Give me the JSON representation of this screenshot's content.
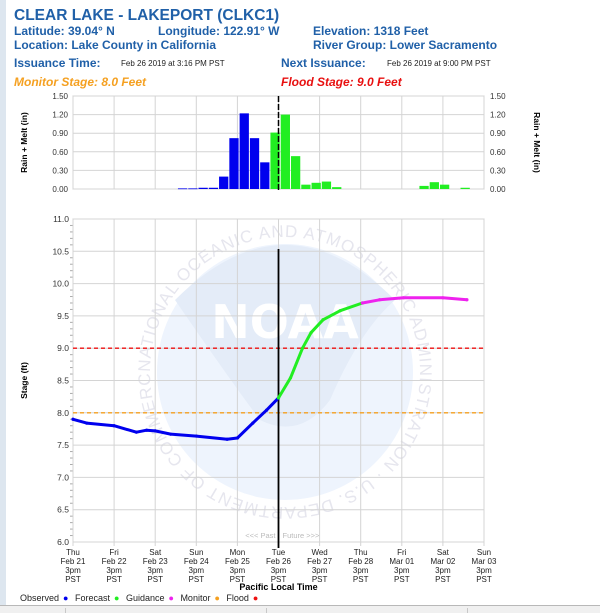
{
  "header": {
    "title": "CLEAR LAKE - LAKEPORT (CLKC1)",
    "latitude": "Latitude: 39.04° N",
    "longitude": "Longitude: 122.91° W",
    "elevation": "Elevation: 1318 Feet",
    "location": "Location: Lake County in California",
    "river_group": "River Group: Lower Sacramento",
    "issuance_label": "Issuance Time:",
    "issuance_value": "Feb 26 2019 at 3:16 PM PST",
    "next_label": "Next Issuance:",
    "next_value": "Feb 26 2019 at 9:00 PM PST",
    "monitor_stage": "Monitor Stage: 8.0 Feet",
    "flood_stage": "Flood Stage: 9.0 Feet"
  },
  "colors": {
    "header_text": "#2060a8",
    "observed": "#0000ee",
    "forecast": "#22ee22",
    "guidance": "#ee22ee",
    "monitor": "#f5a020",
    "flood": "#ee1111"
  },
  "watermark": {
    "text": "NOAA",
    "ring": "NATIONAL OCEANIC AND ATMOSPHERIC ADMINISTRATION · U.S. DEPARTMENT OF COMMERCE"
  },
  "legend": {
    "items": [
      "Observed",
      "Forecast",
      "Guidance",
      "Monitor",
      "Flood"
    ]
  },
  "chart_data": [
    {
      "type": "bar",
      "ylabel": "Rain + Melt (in)",
      "ylim": [
        0,
        1.5
      ],
      "yticks": [
        "0.00",
        "0.30",
        "0.60",
        "0.90",
        "1.20",
        "1.50"
      ],
      "grid": true,
      "bar_period_hours": 6,
      "series": [
        {
          "kind": "observed",
          "color": "#0000ee",
          "points": [
            [
              "2019-02-24T10:00",
              0.01
            ],
            [
              "2019-02-24T16:00",
              0.01
            ],
            [
              "2019-02-24T22:00",
              0.02
            ],
            [
              "2019-02-25T04:00",
              0.02
            ],
            [
              "2019-02-25T10:00",
              0.2
            ],
            [
              "2019-02-25T16:00",
              0.82
            ],
            [
              "2019-02-25T22:00",
              1.22
            ],
            [
              "2019-02-26T04:00",
              0.82
            ],
            [
              "2019-02-26T10:00",
              0.43
            ]
          ]
        },
        {
          "kind": "forecast",
          "color": "#22ee22",
          "points": [
            [
              "2019-02-26T16:00",
              0.91
            ],
            [
              "2019-02-26T22:00",
              1.2
            ],
            [
              "2019-02-27T04:00",
              0.53
            ],
            [
              "2019-02-27T10:00",
              0.07
            ],
            [
              "2019-02-27T16:00",
              0.1
            ],
            [
              "2019-02-27T22:00",
              0.12
            ],
            [
              "2019-02-28T04:00",
              0.03
            ],
            [
              "2019-03-02T07:00",
              0.05
            ],
            [
              "2019-03-02T13:00",
              0.11
            ],
            [
              "2019-03-02T19:00",
              0.07
            ],
            [
              "2019-03-03T07:00",
              0.02
            ]
          ]
        }
      ]
    },
    {
      "type": "line",
      "ylabel": "Stage (ft)",
      "xlabel": "Pacific Local Time",
      "ylim": [
        6.0,
        11.0
      ],
      "yticks": [
        "6.0",
        "6.5",
        "7.0",
        "7.5",
        "8.0",
        "8.5",
        "9.0",
        "9.5",
        "10.0",
        "10.5",
        "11.0"
      ],
      "xlim": [
        "2019-02-21T15:00",
        "2019-03-03T15:00"
      ],
      "xticks": [
        [
          "Thu",
          "Feb 21",
          "3pm",
          "PST"
        ],
        [
          "Fri",
          "Feb 22",
          "3pm",
          "PST"
        ],
        [
          "Sat",
          "Feb 23",
          "3pm",
          "PST"
        ],
        [
          "Sun",
          "Feb 24",
          "3pm",
          "PST"
        ],
        [
          "Mon",
          "Feb 25",
          "3pm",
          "PST"
        ],
        [
          "Tue",
          "Feb 26",
          "3pm",
          "PST"
        ],
        [
          "Wed",
          "Feb 27",
          "3pm",
          "PST"
        ],
        [
          "Thu",
          "Feb 28",
          "3pm",
          "PST"
        ],
        [
          "Fri",
          "Mar 01",
          "3pm",
          "PST"
        ],
        [
          "Sat",
          "Mar 02",
          "3pm",
          "PST"
        ],
        [
          "Sun",
          "Mar 03",
          "3pm",
          "PST"
        ]
      ],
      "grid": true,
      "now": "2019-02-26T15:00",
      "past_label": "<<< Past",
      "future_label": "Future >>>",
      "thresholds": [
        {
          "kind": "flood",
          "value": 9.0,
          "color": "#ee1111"
        },
        {
          "kind": "monitor",
          "value": 8.0,
          "color": "#f5a020"
        }
      ],
      "series": [
        {
          "kind": "observed",
          "color": "#0000ee",
          "points": [
            [
              "2019-02-21T15:00",
              7.9
            ],
            [
              "2019-02-21T23:00",
              7.84
            ],
            [
              "2019-02-22T15:00",
              7.8
            ],
            [
              "2019-02-23T04:00",
              7.7
            ],
            [
              "2019-02-23T10:00",
              7.73
            ],
            [
              "2019-02-23T15:00",
              7.72
            ],
            [
              "2019-02-24T00:00",
              7.67
            ],
            [
              "2019-02-24T15:00",
              7.64
            ],
            [
              "2019-02-25T09:00",
              7.59
            ],
            [
              "2019-02-25T15:00",
              7.61
            ],
            [
              "2019-02-26T00:00",
              7.84
            ],
            [
              "2019-02-26T08:00",
              8.04
            ],
            [
              "2019-02-26T15:00",
              8.23
            ]
          ]
        },
        {
          "kind": "forecast",
          "color": "#22ee22",
          "points": [
            [
              "2019-02-26T15:00",
              8.23
            ],
            [
              "2019-02-26T22:00",
              8.54
            ],
            [
              "2019-02-27T05:00",
              9.0
            ],
            [
              "2019-02-27T10:00",
              9.24
            ],
            [
              "2019-02-27T17:00",
              9.44
            ],
            [
              "2019-02-28T03:00",
              9.58
            ],
            [
              "2019-02-28T16:00",
              9.7
            ]
          ]
        },
        {
          "kind": "guidance",
          "color": "#ee22ee",
          "points": [
            [
              "2019-02-28T16:00",
              9.7
            ],
            [
              "2019-03-01T02:00",
              9.75
            ],
            [
              "2019-03-01T16:00",
              9.78
            ],
            [
              "2019-03-02T15:00",
              9.78
            ],
            [
              "2019-03-03T05:00",
              9.75
            ]
          ]
        }
      ]
    }
  ]
}
